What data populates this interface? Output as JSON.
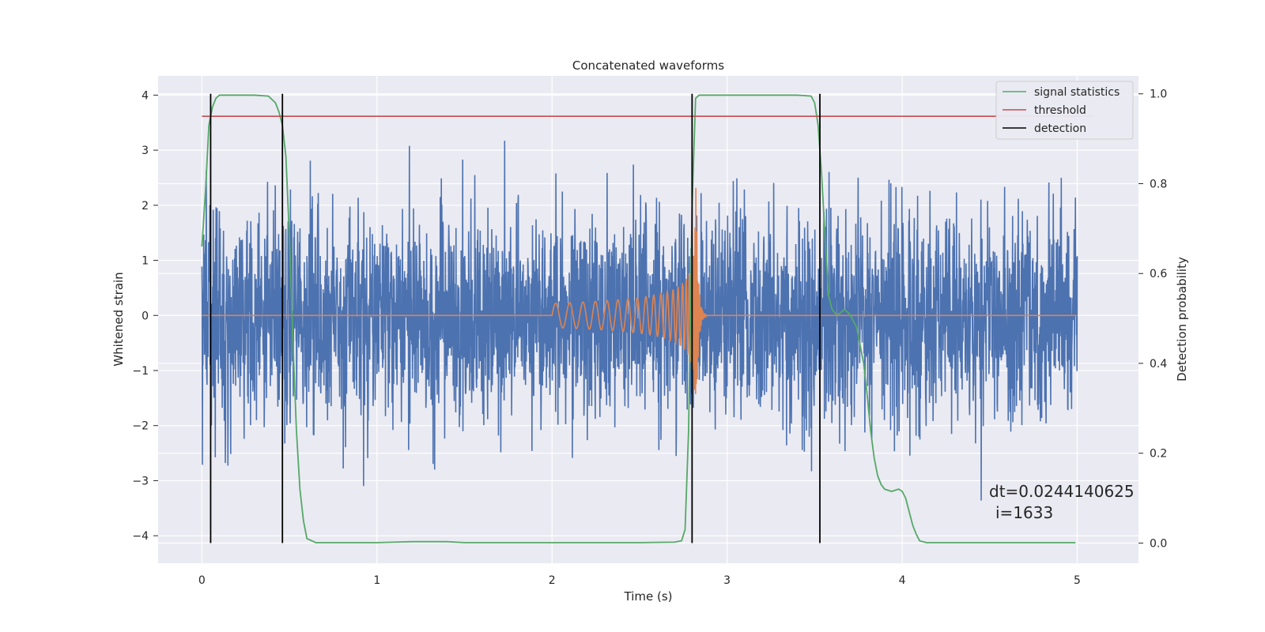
{
  "chart_data": {
    "type": "line",
    "title": "Concatenated waveforms",
    "xlabel": "Time (s)",
    "ylabel": "Whitened strain",
    "y2label": "Detection probability",
    "xlim": [
      -0.25,
      5.35
    ],
    "ylim": [
      -4.5,
      4.35
    ],
    "y2lim": [
      -0.045,
      1.04
    ],
    "xticks": [
      0,
      1,
      2,
      3,
      4,
      5
    ],
    "yticks": [
      -4,
      -3,
      -2,
      -1,
      0,
      1,
      2,
      3,
      4
    ],
    "y2ticks": [
      0.0,
      0.2,
      0.4,
      0.6,
      0.8,
      1.0
    ],
    "xtick_labels": [
      "0",
      "1",
      "2",
      "3",
      "4",
      "5"
    ],
    "ytick_labels": [
      "−4",
      "−3",
      "−2",
      "−1",
      "0",
      "1",
      "2",
      "3",
      "4"
    ],
    "y2tick_labels": [
      "0.0",
      "0.2",
      "0.4",
      "0.6",
      "0.8",
      "1.0"
    ],
    "grid": true,
    "legend_position": "top-right",
    "colors": {
      "strain": "#4c72b0",
      "template": "#dd8452",
      "signal": "#55a868",
      "threshold": "#c44e52",
      "detection": "#000000",
      "background": "#eaeaf2",
      "grid": "#ffffff"
    },
    "strain": {
      "x_range": [
        0,
        5
      ],
      "amplitude_range": [
        -3.6,
        3.95
      ]
    },
    "template": {
      "x_range": [
        0,
        5
      ],
      "chirp_start": 2.0,
      "merger": 2.82,
      "peak_amplitude": 2.8
    },
    "series": [
      {
        "name": "signal statistics",
        "axis": "right",
        "x": [
          0,
          0.02,
          0.04,
          0.06,
          0.08,
          0.1,
          0.15,
          0.2,
          0.3,
          0.38,
          0.42,
          0.44,
          0.46,
          0.48,
          0.5,
          0.52,
          0.54,
          0.56,
          0.58,
          0.6,
          0.65,
          0.8,
          1.0,
          1.2,
          1.4,
          1.5,
          2.0,
          2.5,
          2.7,
          2.74,
          2.76,
          2.78,
          2.8,
          2.82,
          2.84,
          2.86,
          2.9,
          3.0,
          3.2,
          3.4,
          3.48,
          3.5,
          3.52,
          3.54,
          3.56,
          3.58,
          3.6,
          3.62,
          3.64,
          3.67,
          3.7,
          3.74,
          3.78,
          3.8,
          3.82,
          3.84,
          3.86,
          3.88,
          3.9,
          3.94,
          3.98,
          4.0,
          4.02,
          4.04,
          4.06,
          4.08,
          4.1,
          4.14,
          4.2,
          4.5,
          4.99
        ],
        "values": [
          0.66,
          0.78,
          0.93,
          0.97,
          0.99,
          0.997,
          0.997,
          0.997,
          0.997,
          0.995,
          0.98,
          0.96,
          0.93,
          0.86,
          0.68,
          0.45,
          0.25,
          0.12,
          0.05,
          0.01,
          0.001,
          0.001,
          0.001,
          0.003,
          0.003,
          0.001,
          0.001,
          0.001,
          0.002,
          0.005,
          0.03,
          0.25,
          0.75,
          0.99,
          0.997,
          0.997,
          0.997,
          0.997,
          0.997,
          0.997,
          0.995,
          0.98,
          0.93,
          0.82,
          0.68,
          0.55,
          0.52,
          0.51,
          0.51,
          0.52,
          0.51,
          0.48,
          0.4,
          0.33,
          0.25,
          0.19,
          0.15,
          0.13,
          0.12,
          0.115,
          0.12,
          0.115,
          0.1,
          0.07,
          0.04,
          0.02,
          0.005,
          0.001,
          0.001,
          0.001,
          0.001
        ]
      },
      {
        "name": "threshold",
        "axis": "right",
        "x": [
          0,
          5.1
        ],
        "values": [
          0.95,
          0.95
        ]
      },
      {
        "name": "detection",
        "axis": "right",
        "x_positions": [
          0.05,
          0.46,
          2.8,
          3.53
        ],
        "y_range": [
          0,
          1.0
        ]
      }
    ],
    "annotation": {
      "line1": "dt=0.0244140625",
      "line2": "i=1633"
    }
  }
}
